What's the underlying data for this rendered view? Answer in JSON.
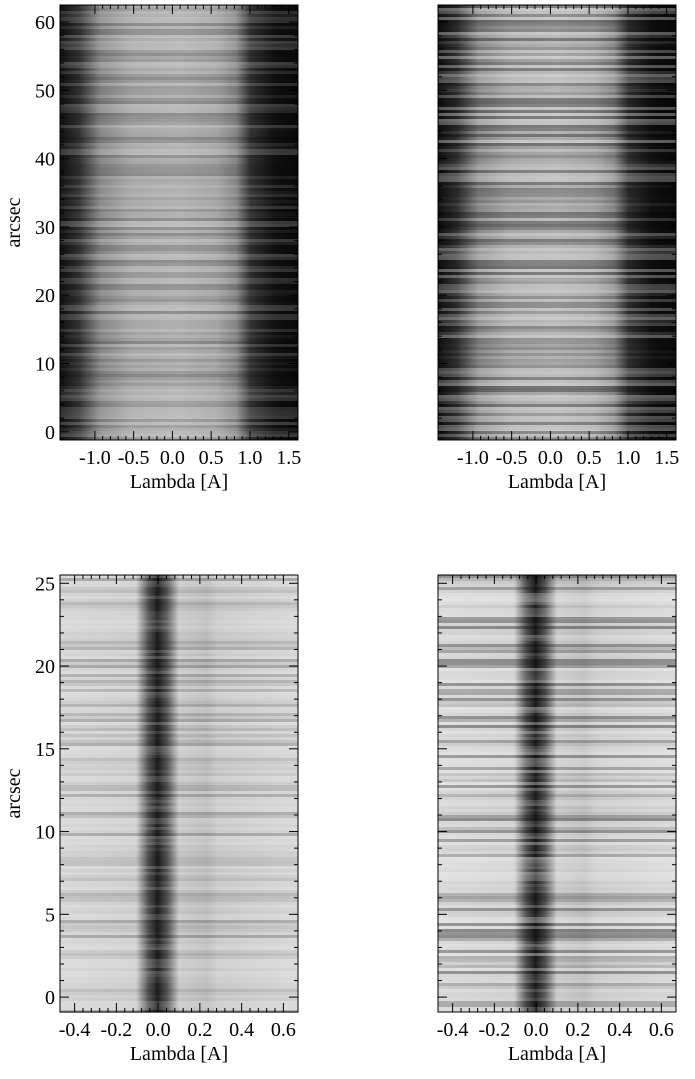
{
  "chart_data": [
    {
      "type": "image",
      "xlabel": "Lambda [A]",
      "ylabel": "arcsec",
      "ytick_labels": true,
      "xlim": [
        -1.45,
        1.62
      ],
      "ylim": [
        -1.2,
        62.5
      ],
      "xticks": [
        {
          "value": -1.0,
          "label": "-1.0"
        },
        {
          "value": -0.5,
          "label": "-0.5"
        },
        {
          "value": 0.0,
          "label": "0.0"
        },
        {
          "value": 0.5,
          "label": "0.5"
        },
        {
          "value": 1.0,
          "label": "1.0"
        },
        {
          "value": 1.5,
          "label": "1.5"
        }
      ],
      "yticks": [
        0,
        10,
        20,
        30,
        40,
        50,
        60
      ]
    },
    {
      "type": "image",
      "xlabel": "Lambda [A]",
      "ytick_labels": false,
      "xlim": [
        -1.45,
        1.62
      ],
      "ylim": [
        -1.2,
        62.5
      ],
      "xticks": [
        {
          "value": -1.0,
          "label": "-1.0"
        },
        {
          "value": -0.5,
          "label": "-0.5"
        },
        {
          "value": 0.0,
          "label": "0.0"
        },
        {
          "value": 0.5,
          "label": "0.5"
        },
        {
          "value": 1.0,
          "label": "1.0"
        },
        {
          "value": 1.5,
          "label": "1.5"
        }
      ],
      "yticks": [
        0,
        10,
        20,
        30,
        40,
        50,
        60
      ]
    },
    {
      "type": "image",
      "xlabel": "Lambda [A]",
      "ylabel": "arcsec",
      "ytick_labels": true,
      "xlim": [
        -0.47,
        0.67
      ],
      "ylim": [
        -0.9,
        25.5
      ],
      "xticks": [
        {
          "value": -0.4,
          "label": "-0.4"
        },
        {
          "value": -0.2,
          "label": "-0.2"
        },
        {
          "value": 0.0,
          "label": "0.0"
        },
        {
          "value": 0.2,
          "label": "0.2"
        },
        {
          "value": 0.4,
          "label": "0.4"
        },
        {
          "value": 0.6,
          "label": "0.6"
        }
      ],
      "yticks": [
        0,
        5,
        10,
        15,
        20,
        25
      ]
    },
    {
      "type": "image",
      "xlabel": "Lambda [A]",
      "ytick_labels": false,
      "xlim": [
        -0.47,
        0.67
      ],
      "ylim": [
        -0.9,
        25.5
      ],
      "xticks": [
        {
          "value": -0.4,
          "label": "-0.4"
        },
        {
          "value": -0.2,
          "label": "-0.2"
        },
        {
          "value": 0.0,
          "label": "0.0"
        },
        {
          "value": 0.2,
          "label": "0.2"
        },
        {
          "value": 0.4,
          "label": "0.4"
        },
        {
          "value": 0.6,
          "label": "0.6"
        }
      ],
      "yticks": [
        0,
        5,
        10,
        15,
        20,
        25
      ]
    }
  ]
}
